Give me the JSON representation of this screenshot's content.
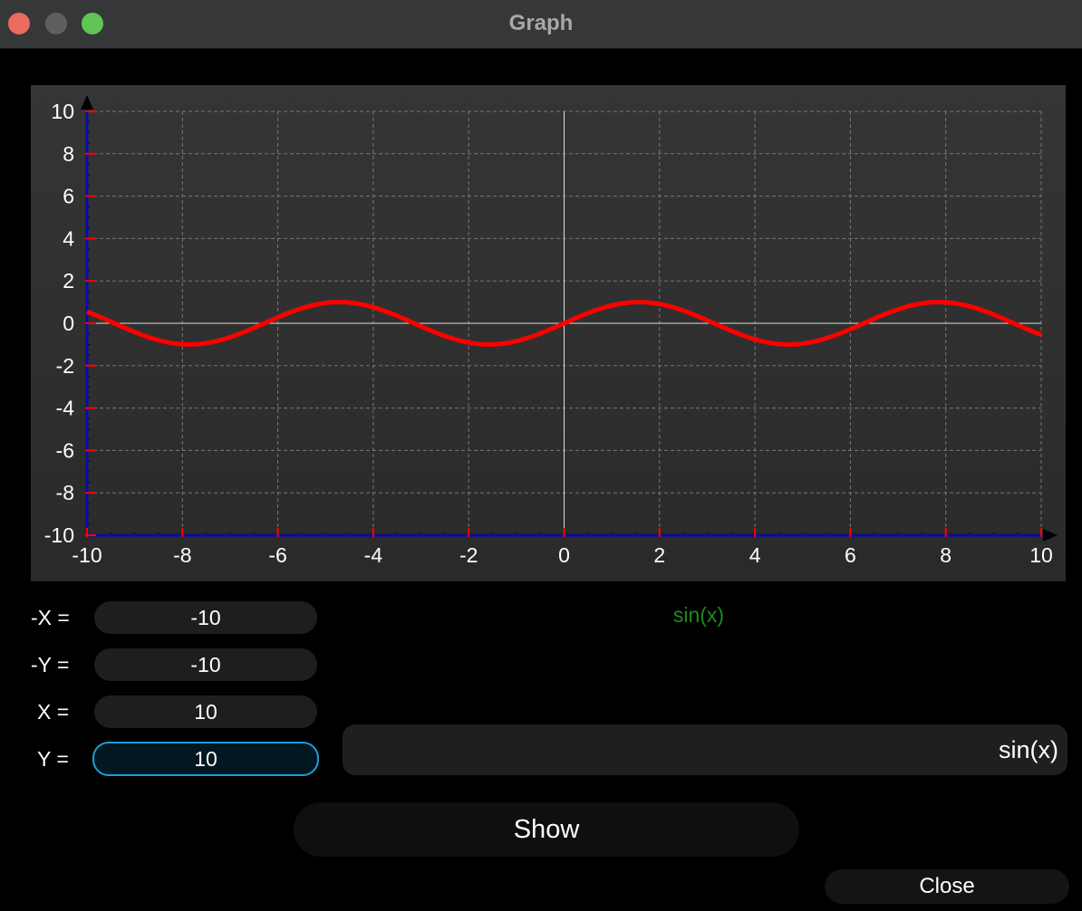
{
  "window": {
    "title": "Graph"
  },
  "colors": {
    "curve": "#ff0000",
    "axis": "#0a0aa8",
    "grid": "#777777",
    "tick": "#ff0000",
    "label_function": "#1d8a1d",
    "focus_border": "#1aa0d8"
  },
  "chart_data": {
    "type": "line",
    "function": "sin(x)",
    "xlim": [
      -10,
      10
    ],
    "ylim": [
      -10,
      10
    ],
    "x_ticks": [
      "-10",
      "-8",
      "-6",
      "-4",
      "-2",
      "0",
      "2",
      "4",
      "6",
      "8",
      "10"
    ],
    "y_ticks": [
      "10",
      "8",
      "6",
      "4",
      "2",
      "0",
      "-2",
      "-4",
      "-6",
      "-8",
      "-10"
    ],
    "grid": true
  },
  "function_label": "sin(x)",
  "ranges": {
    "neg_x_label": "-X =",
    "neg_x_value": "-10",
    "neg_y_label": "-Y =",
    "neg_y_value": "-10",
    "x_label": "X =",
    "x_value": "10",
    "y_label": "Y =",
    "y_value": "10"
  },
  "expression": {
    "value": "sin(x)"
  },
  "buttons": {
    "show": "Show",
    "close": "Close"
  }
}
